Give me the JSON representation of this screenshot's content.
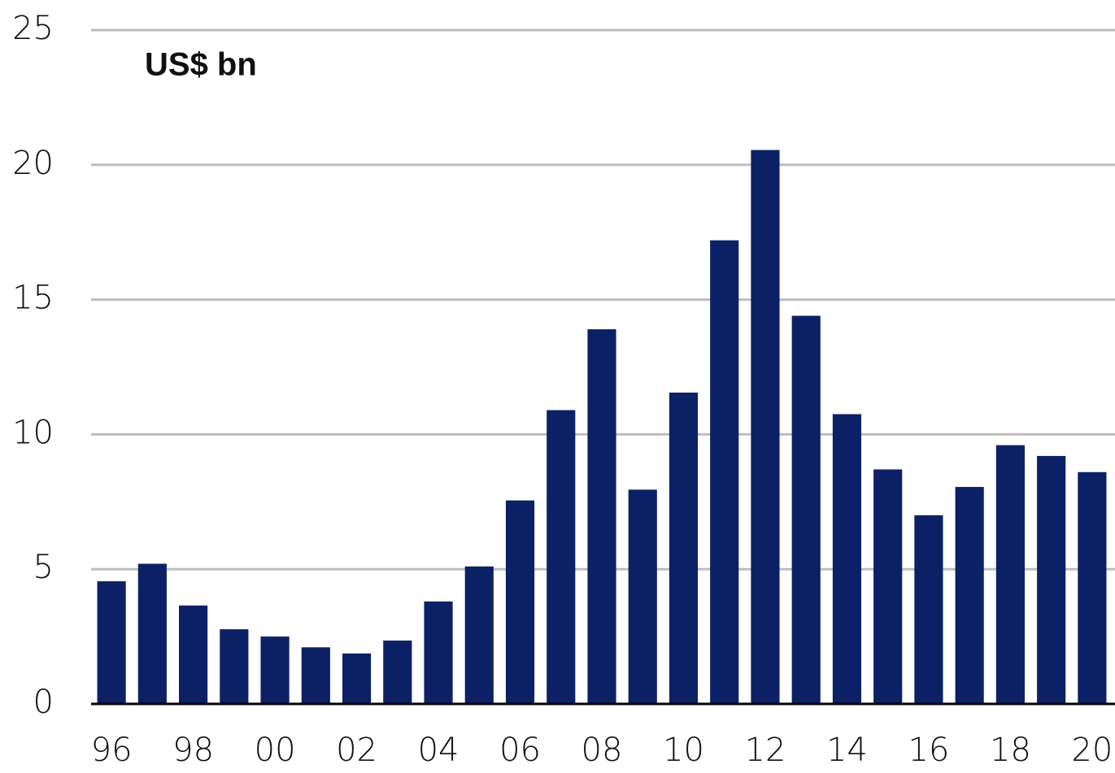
{
  "chart_data": {
    "type": "bar",
    "y_label": "US$ bn",
    "categories": [
      "96",
      null,
      "98",
      null,
      "00",
      null,
      "02",
      null,
      "04",
      null,
      "06",
      null,
      "08",
      null,
      "10",
      null,
      "12",
      null,
      "14",
      null,
      "16",
      null,
      "18",
      null,
      "20"
    ],
    "values": [
      4.55,
      5.2,
      3.65,
      2.77,
      2.5,
      2.1,
      1.87,
      2.35,
      3.8,
      5.1,
      7.55,
      10.9,
      13.9,
      7.95,
      11.55,
      17.2,
      20.55,
      14.4,
      10.75,
      8.7,
      7.0,
      8.05,
      9.6,
      9.2,
      8.6
    ],
    "color": "#0c2165",
    "ylim": [
      0,
      25
    ],
    "yticks": [
      0,
      5,
      10,
      15,
      20,
      25
    ],
    "grid": true
  }
}
